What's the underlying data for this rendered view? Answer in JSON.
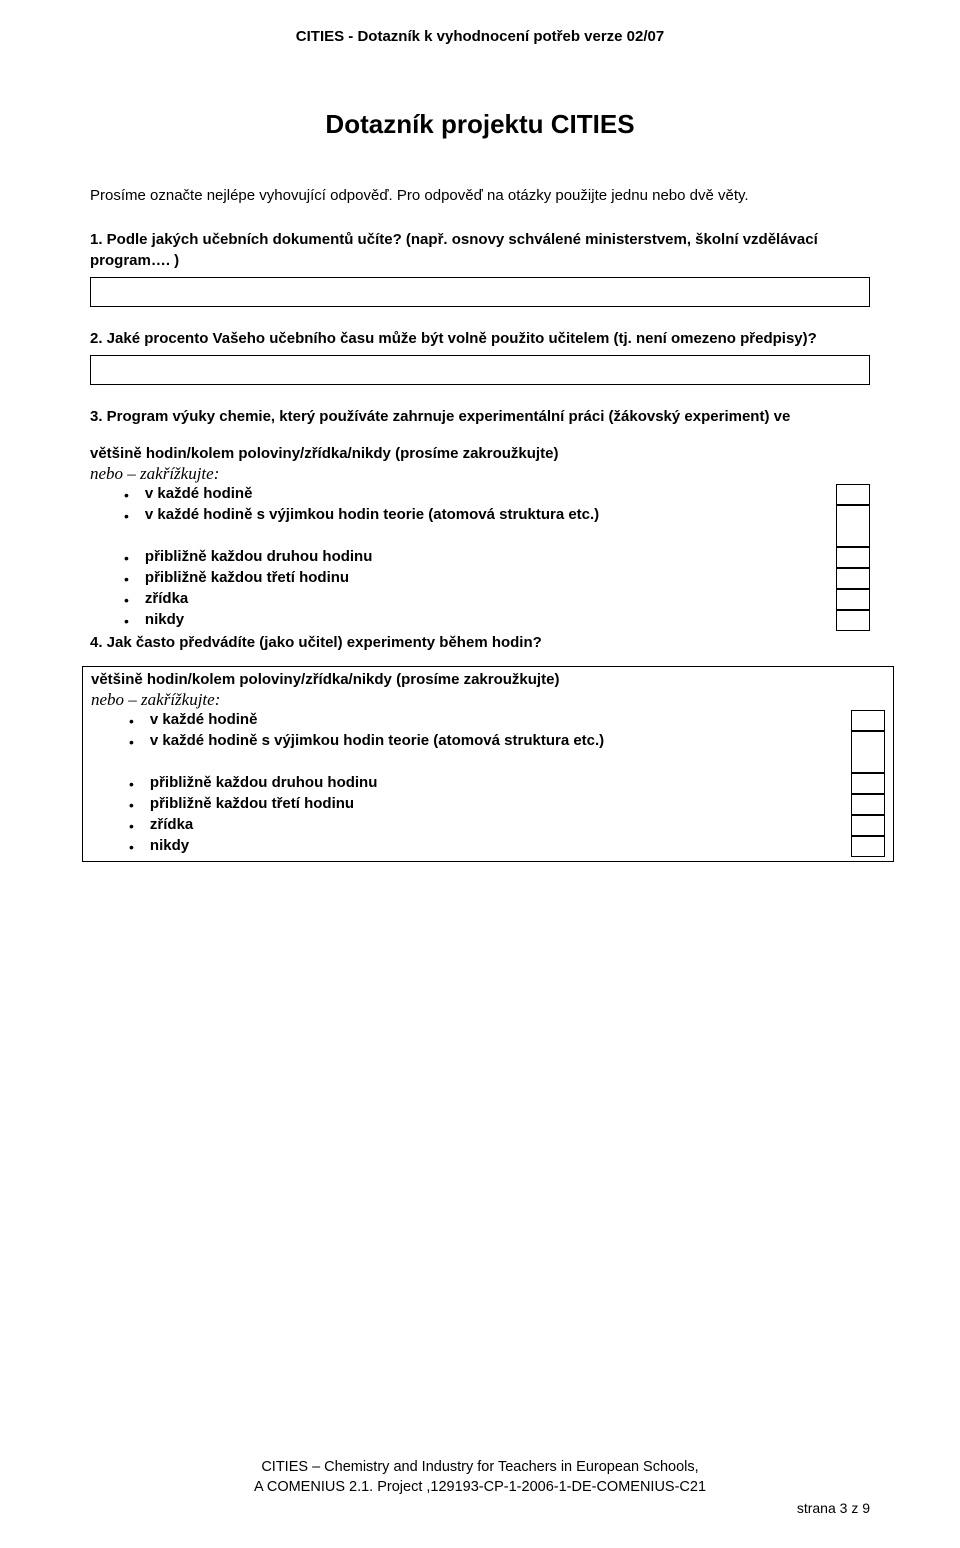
{
  "header": "CITIES - Dotazník k vyhodnocení potřeb verze 02/07",
  "title": "Dotazník projektu CITIES",
  "intro": "Prosíme označte nejlépe vyhovující odpověď. Pro odpověď na otázky použijte jednu nebo dvě věty.",
  "q1": "1. Podle jakých učebních dokumentů učíte? (např. osnovy schválené ministerstvem, školní vzdělávací program…. )",
  "q2": "2. Jaké procento Vašeho učebního času může být volně použito učitelem (tj. není omezeno předpisy)?",
  "q3": "3. Program výuky chemie, který používáte zahrnuje experimentální práci (žákovský experiment) ve",
  "instr_bold": "většině hodin/kolem poloviny/zřídka/nikdy (prosíme zakroužkujte)",
  "instr_italic": "nebo – zakřížkujte:",
  "options": [
    "v každé hodině",
    "v každé hodině s výjimkou hodin teorie (atomová struktura etc.)",
    "přibližně každou druhou hodinu",
    "přibližně každou třetí hodinu",
    "zřídka",
    "nikdy"
  ],
  "q4": "4. Jak často předvádíte (jako učitel) experimenty během hodin?",
  "footer1": "CITIES – Chemistry and Industry for Teachers in European Schools,",
  "footer2": "A COMENIUS 2.1. Project ,129193-CP-1-2006-1-DE-COMENIUS-C21",
  "page_num": "strana 3 z 9"
}
